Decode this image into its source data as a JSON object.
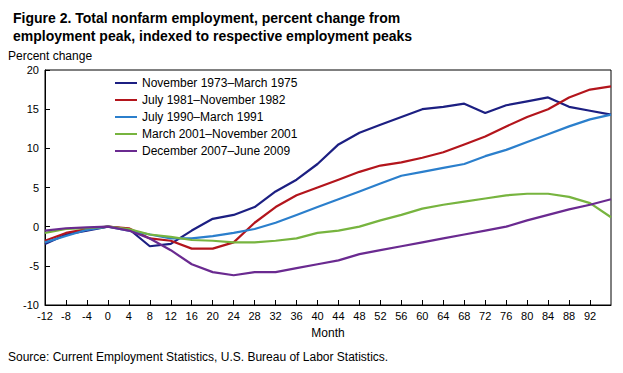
{
  "chart_data": {
    "type": "line",
    "title": "Figure 2. Total nonfarm employment, percent change from employment peak, indexed to respective employment peaks",
    "y_label": "Percent change",
    "x_label": "Month",
    "source": "Source: Current Employment Statistics, U.S. Bureau of Labor Statistics.",
    "x": [
      -12,
      -8,
      -4,
      0,
      4,
      8,
      12,
      16,
      20,
      24,
      28,
      32,
      36,
      40,
      44,
      48,
      52,
      56,
      60,
      64,
      68,
      72,
      76,
      80,
      84,
      88,
      92,
      96
    ],
    "series": [
      {
        "name": "November 1973–March 1975",
        "color": "#1c1f82",
        "values": [
          -2.2,
          -1.0,
          -0.5,
          0,
          -0.3,
          -2.5,
          -2.2,
          -0.5,
          1.0,
          1.5,
          2.5,
          4.5,
          6.0,
          8.0,
          10.5,
          12.0,
          13.0,
          14.0,
          15.0,
          15.3,
          15.7,
          14.5,
          15.5,
          16.0,
          16.5,
          15.3,
          14.8,
          14.3
        ]
      },
      {
        "name": "July 1981–November 1982",
        "color": "#b3151c",
        "values": [
          -1.8,
          -0.8,
          -0.3,
          0,
          -0.2,
          -1.5,
          -1.8,
          -2.8,
          -2.8,
          -2.0,
          0.5,
          2.5,
          4.0,
          5.0,
          6.0,
          7.0,
          7.8,
          8.2,
          8.8,
          9.5,
          10.5,
          11.5,
          12.8,
          14.0,
          15.0,
          16.5,
          17.5,
          17.9
        ]
      },
      {
        "name": "July 1990–March 1991",
        "color": "#2b7fcc",
        "values": [
          -2.0,
          -1.2,
          -0.4,
          0,
          -0.5,
          -1.0,
          -1.5,
          -1.5,
          -1.2,
          -0.8,
          -0.3,
          0.5,
          1.5,
          2.5,
          3.5,
          4.5,
          5.5,
          6.5,
          7.0,
          7.5,
          8.0,
          9.0,
          9.8,
          10.8,
          11.8,
          12.8,
          13.7,
          14.3
        ]
      },
      {
        "name": "March 2001–November 2001",
        "color": "#77b43f",
        "values": [
          -0.8,
          -0.3,
          -0.2,
          0,
          -0.3,
          -1.0,
          -1.3,
          -1.7,
          -1.8,
          -2.0,
          -2.0,
          -1.8,
          -1.5,
          -0.8,
          -0.5,
          0.0,
          0.8,
          1.5,
          2.3,
          2.8,
          3.2,
          3.6,
          4.0,
          4.2,
          4.2,
          3.8,
          3.0,
          1.2
        ]
      },
      {
        "name": "December 2007–June 2009",
        "color": "#6a2a90",
        "values": [
          -0.5,
          -0.2,
          -0.1,
          0,
          -0.5,
          -1.5,
          -3.0,
          -4.8,
          -5.8,
          -6.2,
          -5.8,
          -5.8,
          -5.3,
          -4.8,
          -4.3,
          -3.5,
          -3.0,
          -2.5,
          -2.0,
          -1.5,
          -1.0,
          -0.5,
          0.0,
          0.8,
          1.5,
          2.2,
          2.8,
          3.5
        ]
      }
    ],
    "xlim": [
      -12,
      96
    ],
    "xticks": [
      -12,
      -8,
      -4,
      0,
      4,
      8,
      12,
      16,
      20,
      24,
      28,
      32,
      36,
      40,
      44,
      48,
      52,
      56,
      60,
      64,
      68,
      72,
      76,
      80,
      84,
      88,
      92
    ],
    "ylim": [
      -10,
      20
    ],
    "yticks": [
      -10,
      -5,
      0,
      5,
      10,
      15,
      20
    ],
    "grid": false,
    "legend": "upper left"
  }
}
